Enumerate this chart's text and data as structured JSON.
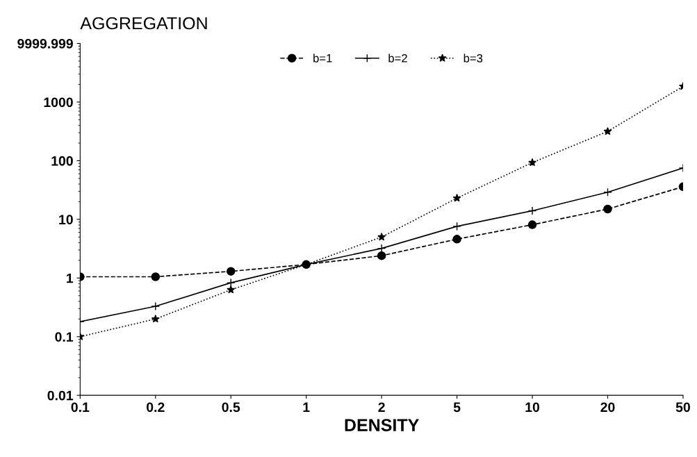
{
  "chart_data": {
    "type": "line",
    "ylabel": "AGGREGATION",
    "xlabel": "DENSITY",
    "categories": [
      "0.1",
      "0.2",
      "0.5",
      "1",
      "2",
      "5",
      "10",
      "20",
      "50"
    ],
    "series": [
      {
        "name": "b=1",
        "color": "#000000",
        "marker": "circle",
        "line_style": "dashed",
        "values": [
          1.05,
          1.05,
          1.3,
          1.7,
          2.4,
          4.6,
          8.1,
          15,
          36
        ]
      },
      {
        "name": "b=2",
        "color": "#000000",
        "marker": "cross",
        "line_style": "solid",
        "values": [
          0.18,
          0.33,
          0.83,
          1.7,
          3.2,
          7.6,
          14,
          29,
          75
        ]
      },
      {
        "name": "b=3",
        "color": "#000000",
        "marker": "star",
        "line_style": "dotted",
        "values": [
          0.1,
          0.2,
          0.63,
          1.7,
          5,
          23,
          93,
          316,
          1850
        ]
      }
    ],
    "log": "y",
    "ylim": [
      0.01,
      9999.999
    ],
    "yticks": [
      0.01,
      0.1,
      1,
      10,
      100,
      1000,
      9999.999
    ],
    "grid": false,
    "legend": "top"
  }
}
